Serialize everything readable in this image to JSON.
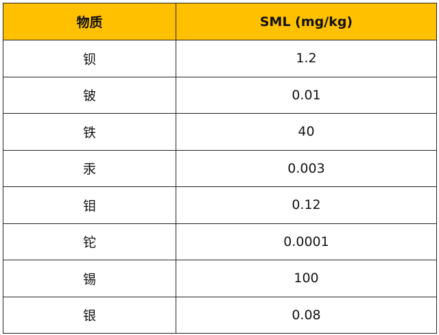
{
  "table": {
    "header": [
      "物质",
      "SML (mg/kg)"
    ],
    "rows": [
      [
        "钡",
        "1.2"
      ],
      [
        "铍",
        "0.01"
      ],
      [
        "铁",
        "40"
      ],
      [
        "汞",
        "0.003"
      ],
      [
        "钼",
        "0.12"
      ],
      [
        "铊",
        "0.0001"
      ],
      [
        "锡",
        "100"
      ],
      [
        "银",
        "0.08"
      ]
    ]
  }
}
